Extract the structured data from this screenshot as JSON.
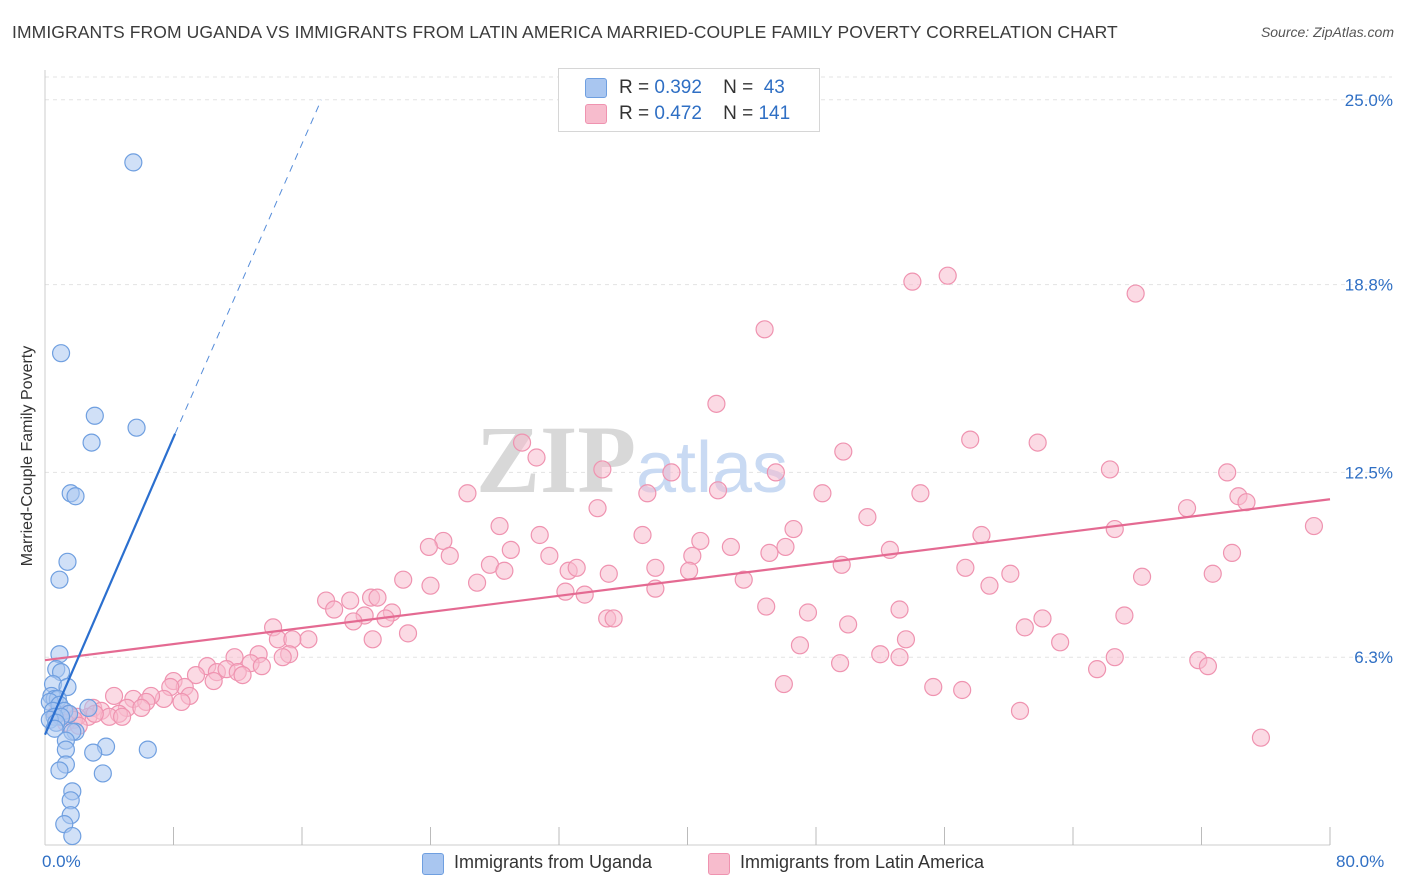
{
  "title": "IMMIGRANTS FROM UGANDA VS IMMIGRANTS FROM LATIN AMERICA MARRIED-COUPLE FAMILY POVERTY CORRELATION CHART",
  "source": "Source: ZipAtlas.com",
  "watermark": "ZIPatlas",
  "legend": {
    "uganda": {
      "r_label": "R =",
      "r": "0.392",
      "n_label": "N =",
      "n": "43"
    },
    "latam": {
      "r_label": "R =",
      "r": "0.472",
      "n_label": "N =",
      "n": "141"
    }
  },
  "x_min_label": "0.0%",
  "x_max_label": "80.0%",
  "colors": {
    "uganda_fill": "#a9c6f0",
    "uganda_stroke": "#6f9fe0",
    "uganda_line": "#2b6fcf",
    "latam_fill": "#f7bccd",
    "latam_stroke": "#ef93b0",
    "latam_line": "#e46a92",
    "tick_label": "#2f6fc4"
  },
  "chart_data": {
    "type": "scatter",
    "title": "IMMIGRANTS FROM UGANDA VS IMMIGRANTS FROM LATIN AMERICA MARRIED-COUPLE FAMILY POVERTY CORRELATION CHART",
    "xlabel": "",
    "ylabel": "Married-Couple Family Poverty",
    "xlim": [
      0,
      80
    ],
    "ylim": [
      0,
      26
    ],
    "y_ticks": [
      6.3,
      12.5,
      18.8,
      25.0
    ],
    "y_tick_labels": [
      "6.3%",
      "12.5%",
      "18.8%",
      "25.0%"
    ],
    "x_tick_labels": [
      "0.0%",
      "80.0%"
    ],
    "grid": true,
    "legend_position": "top-center",
    "series": [
      {
        "name": "Immigrants from Uganda",
        "r": 0.392,
        "n": 43,
        "trend": {
          "x0": 0.0,
          "y0": 3.7,
          "x1": 8.1,
          "y1": 13.8,
          "dashed_to_x": 17.2,
          "dashed_to_y": 25.0
        },
        "points": [
          [
            5.5,
            22.9
          ],
          [
            1.0,
            16.5
          ],
          [
            3.1,
            14.4
          ],
          [
            5.7,
            14.0
          ],
          [
            2.9,
            13.5
          ],
          [
            1.6,
            11.8
          ],
          [
            1.9,
            11.7
          ],
          [
            1.4,
            9.5
          ],
          [
            0.9,
            8.9
          ],
          [
            0.9,
            6.4
          ],
          [
            0.7,
            5.9
          ],
          [
            1.0,
            5.8
          ],
          [
            0.5,
            5.4
          ],
          [
            1.4,
            5.3
          ],
          [
            0.4,
            5.0
          ],
          [
            0.6,
            4.9
          ],
          [
            0.8,
            4.9
          ],
          [
            0.3,
            4.8
          ],
          [
            0.9,
            4.7
          ],
          [
            2.7,
            4.6
          ],
          [
            0.5,
            4.5
          ],
          [
            1.2,
            4.5
          ],
          [
            1.5,
            4.4
          ],
          [
            0.6,
            4.3
          ],
          [
            1.0,
            4.3
          ],
          [
            0.3,
            4.2
          ],
          [
            0.7,
            4.1
          ],
          [
            0.6,
            3.9
          ],
          [
            1.9,
            3.8
          ],
          [
            1.7,
            3.8
          ],
          [
            1.3,
            3.5
          ],
          [
            1.3,
            3.2
          ],
          [
            3.8,
            3.3
          ],
          [
            6.4,
            3.2
          ],
          [
            3.0,
            3.1
          ],
          [
            1.3,
            2.7
          ],
          [
            0.9,
            2.5
          ],
          [
            3.6,
            2.4
          ],
          [
            1.7,
            1.8
          ],
          [
            1.6,
            1.5
          ],
          [
            1.6,
            1.0
          ],
          [
            1.2,
            0.7
          ],
          [
            1.7,
            0.3
          ]
        ]
      },
      {
        "name": "Immigrants from Latin America",
        "r": 0.472,
        "n": 141,
        "trend": {
          "x0": 0.0,
          "y0": 6.2,
          "x1": 80.0,
          "y1": 11.6
        },
        "points": [
          [
            56.2,
            19.1
          ],
          [
            54.0,
            18.9
          ],
          [
            67.9,
            18.5
          ],
          [
            44.8,
            17.3
          ],
          [
            41.8,
            14.8
          ],
          [
            57.6,
            13.6
          ],
          [
            61.8,
            13.5
          ],
          [
            29.7,
            13.5
          ],
          [
            49.7,
            13.2
          ],
          [
            30.6,
            13.0
          ],
          [
            34.7,
            12.6
          ],
          [
            39.0,
            12.5
          ],
          [
            45.5,
            12.5
          ],
          [
            66.3,
            12.6
          ],
          [
            73.6,
            12.5
          ],
          [
            41.9,
            11.9
          ],
          [
            26.3,
            11.8
          ],
          [
            37.5,
            11.8
          ],
          [
            48.4,
            11.8
          ],
          [
            54.5,
            11.8
          ],
          [
            74.3,
            11.7
          ],
          [
            74.8,
            11.5
          ],
          [
            34.4,
            11.3
          ],
          [
            71.1,
            11.3
          ],
          [
            51.2,
            11.0
          ],
          [
            28.3,
            10.7
          ],
          [
            37.2,
            10.4
          ],
          [
            46.6,
            10.6
          ],
          [
            66.6,
            10.6
          ],
          [
            58.3,
            10.4
          ],
          [
            79.0,
            10.7
          ],
          [
            30.8,
            10.4
          ],
          [
            24.8,
            10.2
          ],
          [
            40.8,
            10.2
          ],
          [
            42.7,
            10.0
          ],
          [
            46.1,
            10.0
          ],
          [
            23.9,
            10.0
          ],
          [
            52.6,
            9.9
          ],
          [
            29.0,
            9.9
          ],
          [
            45.1,
            9.8
          ],
          [
            73.9,
            9.8
          ],
          [
            25.2,
            9.7
          ],
          [
            31.4,
            9.7
          ],
          [
            40.3,
            9.7
          ],
          [
            27.7,
            9.4
          ],
          [
            49.6,
            9.4
          ],
          [
            28.6,
            9.2
          ],
          [
            32.6,
            9.2
          ],
          [
            33.1,
            9.3
          ],
          [
            35.1,
            9.1
          ],
          [
            38.0,
            9.3
          ],
          [
            40.1,
            9.2
          ],
          [
            57.3,
            9.3
          ],
          [
            60.1,
            9.1
          ],
          [
            72.7,
            9.1
          ],
          [
            68.3,
            9.0
          ],
          [
            22.3,
            8.9
          ],
          [
            43.5,
            8.9
          ],
          [
            26.9,
            8.8
          ],
          [
            38.0,
            8.6
          ],
          [
            58.8,
            8.7
          ],
          [
            24.0,
            8.7
          ],
          [
            32.4,
            8.5
          ],
          [
            33.6,
            8.4
          ],
          [
            20.3,
            8.3
          ],
          [
            19.0,
            8.2
          ],
          [
            17.5,
            8.2
          ],
          [
            20.7,
            8.3
          ],
          [
            21.6,
            7.8
          ],
          [
            44.9,
            8.0
          ],
          [
            18.0,
            7.9
          ],
          [
            19.9,
            7.7
          ],
          [
            53.2,
            7.9
          ],
          [
            47.5,
            7.8
          ],
          [
            21.2,
            7.6
          ],
          [
            35.0,
            7.6
          ],
          [
            35.4,
            7.6
          ],
          [
            19.2,
            7.5
          ],
          [
            62.1,
            7.6
          ],
          [
            67.2,
            7.7
          ],
          [
            50.0,
            7.4
          ],
          [
            61.0,
            7.3
          ],
          [
            14.2,
            7.3
          ],
          [
            22.6,
            7.1
          ],
          [
            14.5,
            6.9
          ],
          [
            16.4,
            6.9
          ],
          [
            63.2,
            6.8
          ],
          [
            20.4,
            6.9
          ],
          [
            15.4,
            6.9
          ],
          [
            53.6,
            6.9
          ],
          [
            47.0,
            6.7
          ],
          [
            13.3,
            6.4
          ],
          [
            15.2,
            6.4
          ],
          [
            52.0,
            6.4
          ],
          [
            14.8,
            6.3
          ],
          [
            11.8,
            6.3
          ],
          [
            53.2,
            6.3
          ],
          [
            66.6,
            6.3
          ],
          [
            49.5,
            6.1
          ],
          [
            12.8,
            6.1
          ],
          [
            13.5,
            6.0
          ],
          [
            71.8,
            6.2
          ],
          [
            65.5,
            5.9
          ],
          [
            72.4,
            6.0
          ],
          [
            10.1,
            6.0
          ],
          [
            10.7,
            5.8
          ],
          [
            11.3,
            5.9
          ],
          [
            12.0,
            5.8
          ],
          [
            12.3,
            5.7
          ],
          [
            9.4,
            5.7
          ],
          [
            10.5,
            5.5
          ],
          [
            8.0,
            5.5
          ],
          [
            8.7,
            5.3
          ],
          [
            7.8,
            5.3
          ],
          [
            46.0,
            5.4
          ],
          [
            55.3,
            5.3
          ],
          [
            57.1,
            5.2
          ],
          [
            9.0,
            5.0
          ],
          [
            4.3,
            5.0
          ],
          [
            5.5,
            4.9
          ],
          [
            7.4,
            4.9
          ],
          [
            6.6,
            5.0
          ],
          [
            6.3,
            4.8
          ],
          [
            8.5,
            4.8
          ],
          [
            3.0,
            4.6
          ],
          [
            5.1,
            4.6
          ],
          [
            3.5,
            4.5
          ],
          [
            6.0,
            4.6
          ],
          [
            4.6,
            4.4
          ],
          [
            1.4,
            4.4
          ],
          [
            2.7,
            4.3
          ],
          [
            4.0,
            4.3
          ],
          [
            3.1,
            4.4
          ],
          [
            0.7,
            4.4
          ],
          [
            2.0,
            4.3
          ],
          [
            4.8,
            4.3
          ],
          [
            1.8,
            4.2
          ],
          [
            1.3,
            4.1
          ],
          [
            2.1,
            4.0
          ],
          [
            60.7,
            4.5
          ],
          [
            75.7,
            3.6
          ]
        ]
      }
    ]
  }
}
